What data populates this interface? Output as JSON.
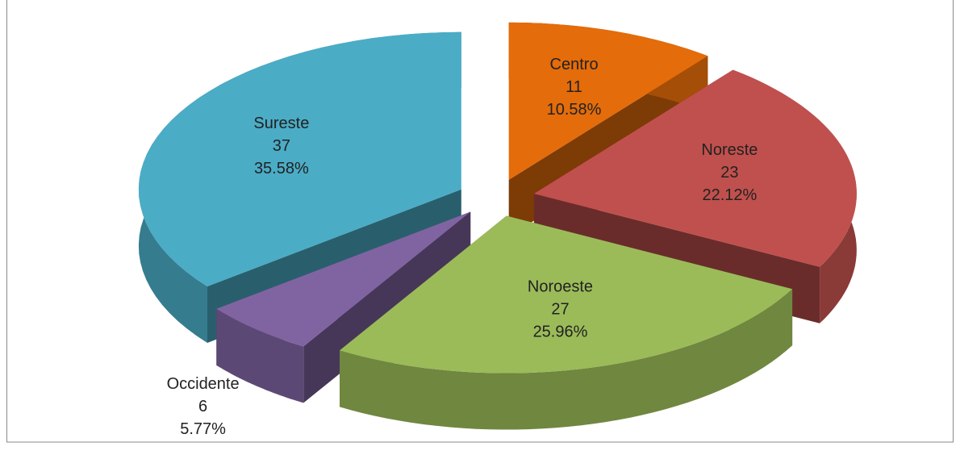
{
  "chart_data": {
    "type": "pie",
    "categories": [
      "Centro",
      "Noreste",
      "Noroeste",
      "Occidente",
      "Sureste"
    ],
    "values": [
      11,
      23,
      27,
      6,
      37
    ],
    "percent_labels": [
      "10.58%",
      "22.12%",
      "25.96%",
      "5.77%",
      "35.58%"
    ],
    "colors": [
      "#e46c0a",
      "#c0504d",
      "#9bbb59",
      "#8064a2",
      "#4bacc6"
    ],
    "exploded": true,
    "three_d": true
  }
}
